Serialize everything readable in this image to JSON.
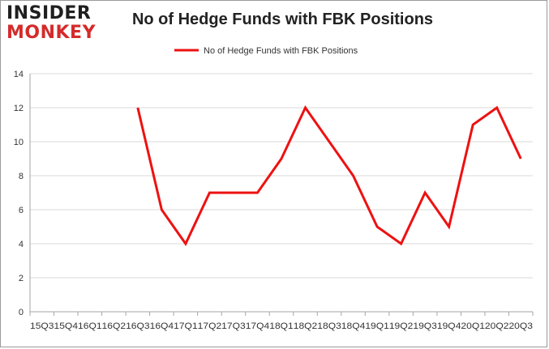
{
  "logo": {
    "line1": "INSIDER",
    "line2": "MONKEY"
  },
  "colors": {
    "series": "#ee1111",
    "grid": "#d9d9d9",
    "axis": "#a6a6a6"
  },
  "chart_data": {
    "type": "line",
    "title": "No of Hedge Funds with FBK Positions",
    "legend": "top",
    "grid": true,
    "ylim": [
      0,
      14
    ],
    "yticks": [
      0,
      2,
      4,
      6,
      8,
      10,
      12,
      14
    ],
    "categories": [
      "15Q3",
      "15Q4",
      "16Q1",
      "16Q2",
      "16Q3",
      "16Q4",
      "17Q1",
      "17Q2",
      "17Q3",
      "17Q4",
      "18Q1",
      "18Q2",
      "18Q3",
      "18Q4",
      "19Q1",
      "19Q2",
      "19Q3",
      "19Q4",
      "20Q1",
      "20Q2",
      "20Q3"
    ],
    "series": [
      {
        "name": "No of Hedge Funds with FBK Positions",
        "values": [
          null,
          null,
          null,
          null,
          12,
          6,
          4,
          7,
          7,
          7,
          9,
          12,
          10,
          8,
          5,
          4,
          7,
          5,
          11,
          12,
          9
        ]
      }
    ]
  }
}
